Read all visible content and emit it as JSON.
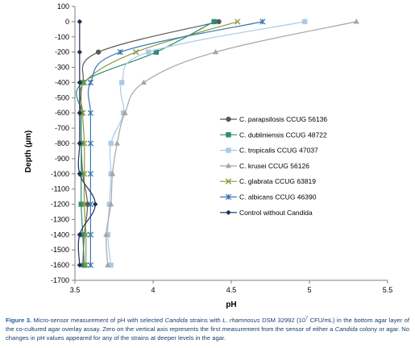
{
  "chart_data": {
    "type": "line",
    "xlabel": "pH",
    "ylabel": "Depth (µm)",
    "xlim": [
      3.5,
      5.5
    ],
    "ylim": [
      -1700,
      100
    ],
    "x_ticks": [
      "3.5",
      "4",
      "4.5",
      "5",
      "5.5"
    ],
    "y_ticks": [
      "100",
      "0",
      "-100",
      "-200",
      "-300",
      "-400",
      "-500",
      "-600",
      "-700",
      "-800",
      "-900",
      "-1000",
      "-1100",
      "-1200",
      "-1300",
      "-1400",
      "-1500",
      "-1600",
      "-1700"
    ],
    "grid": false,
    "legend_position": "right",
    "series": [
      {
        "name": "C. parapsilosis CCUG 56136",
        "color": "#595959",
        "marker": "circle",
        "depth": [
          0,
          -200,
          -400,
          -600,
          -800,
          -1000,
          -1200,
          -1400,
          -1600
        ],
        "ph": [
          4.42,
          3.65,
          3.55,
          3.54,
          3.54,
          3.55,
          3.58,
          3.56,
          3.55
        ]
      },
      {
        "name": "C. dubliniensis CCUG 48722",
        "color": "#2e8b74",
        "marker": "square",
        "depth": [
          0,
          -200,
          -400,
          -600,
          -800,
          -1000,
          -1200,
          -1400,
          -1600
        ],
        "ph": [
          4.39,
          4.02,
          3.55,
          3.54,
          3.54,
          3.54,
          3.54,
          3.55,
          3.56
        ]
      },
      {
        "name": "C. tropicalis CCUG 47037",
        "color": "#a9cbe8",
        "marker": "square",
        "depth": [
          0,
          -200,
          -400,
          -600,
          -800,
          -1000,
          -1200,
          -1400,
          -1600
        ],
        "ph": [
          4.97,
          3.97,
          3.8,
          3.81,
          3.73,
          3.73,
          3.72,
          3.71,
          3.73
        ]
      },
      {
        "name": "C. krusei CCUG 56126",
        "color": "#a6a6a6",
        "marker": "triangle",
        "depth": [
          0,
          -200,
          -400,
          -600,
          -800,
          -1000,
          -1200,
          -1400,
          -1600
        ],
        "ph": [
          5.3,
          4.4,
          3.94,
          3.82,
          3.77,
          3.74,
          3.73,
          3.7,
          3.71
        ]
      },
      {
        "name": "C. glabrata CCUG 63819",
        "color": "#8a9a3c",
        "marker": "x",
        "depth": [
          0,
          -200,
          -400,
          -600,
          -800,
          -1000,
          -1200,
          -1400,
          -1600
        ],
        "ph": [
          4.54,
          3.89,
          3.56,
          3.55,
          3.56,
          3.56,
          3.56,
          3.57,
          3.57
        ]
      },
      {
        "name": "C. albicans CCUG 46390",
        "color": "#3a78b5",
        "marker": "star",
        "depth": [
          0,
          -200,
          -400,
          -600,
          -800,
          -1000,
          -1200,
          -1400,
          -1600
        ],
        "ph": [
          4.7,
          3.79,
          3.6,
          3.6,
          3.6,
          3.6,
          3.6,
          3.6,
          3.6
        ]
      },
      {
        "name": "Control without Candida",
        "color": "#1f2f5c",
        "marker": "diamond",
        "depth": [
          0,
          -200,
          -400,
          -600,
          -800,
          -1000,
          -1200,
          -1400,
          -1600
        ],
        "ph": [
          3.53,
          3.53,
          3.53,
          3.53,
          3.53,
          3.53,
          3.63,
          3.53,
          3.53
        ]
      }
    ]
  },
  "caption": {
    "label": "Figure 3.",
    "t1": " Micro-sensor measurement of pH with selected ",
    "t2": "Candida",
    "t3": " strains with ",
    "t4": "L. rhamnosus",
    "t5": " DSM 32992 (10",
    "t6": "7",
    "t7": " CFU/mL) in the bottom agar layer of the co-cultured agar overlay assay. Zero on the vertical axis represents the first measurement from the sensor of either a ",
    "t8": "Candida",
    "t9": " colony or agar. No changes in pH values appeared for any of the strains at deeper levels in the agar."
  }
}
